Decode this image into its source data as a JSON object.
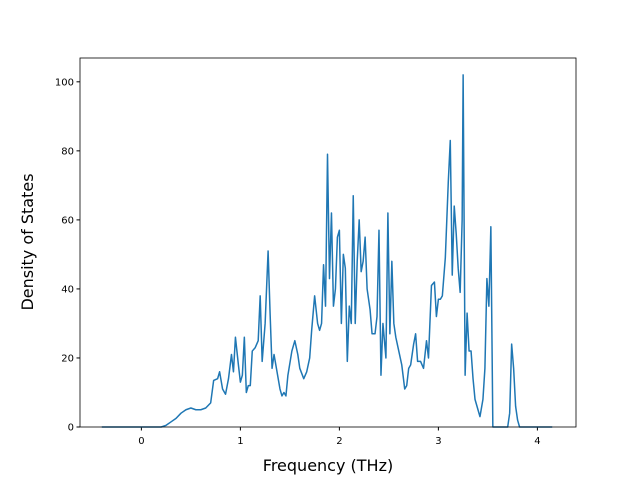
{
  "chart_data": {
    "type": "line",
    "x_label": "Frequency (THz)",
    "y_label": "Density of States",
    "x": [
      -0.4,
      0.2,
      0.25,
      0.3,
      0.35,
      0.4,
      0.45,
      0.5,
      0.55,
      0.6,
      0.65,
      0.7,
      0.73,
      0.77,
      0.79,
      0.82,
      0.85,
      0.88,
      0.91,
      0.93,
      0.95,
      0.98,
      1.0,
      1.02,
      1.04,
      1.06,
      1.08,
      1.1,
      1.12,
      1.15,
      1.18,
      1.2,
      1.22,
      1.25,
      1.28,
      1.3,
      1.32,
      1.34,
      1.37,
      1.4,
      1.42,
      1.44,
      1.46,
      1.48,
      1.52,
      1.55,
      1.58,
      1.6,
      1.64,
      1.67,
      1.7,
      1.72,
      1.75,
      1.78,
      1.8,
      1.82,
      1.84,
      1.86,
      1.88,
      1.9,
      1.92,
      1.94,
      1.96,
      1.98,
      2.0,
      2.02,
      2.04,
      2.06,
      2.08,
      2.1,
      2.12,
      2.14,
      2.16,
      2.18,
      2.2,
      2.22,
      2.24,
      2.26,
      2.28,
      2.31,
      2.33,
      2.36,
      2.38,
      2.4,
      2.42,
      2.44,
      2.47,
      2.49,
      2.51,
      2.53,
      2.55,
      2.57,
      2.6,
      2.63,
      2.66,
      2.68,
      2.7,
      2.72,
      2.75,
      2.77,
      2.79,
      2.82,
      2.85,
      2.88,
      2.9,
      2.93,
      2.96,
      2.98,
      3.0,
      3.02,
      3.04,
      3.07,
      3.1,
      3.12,
      3.14,
      3.16,
      3.18,
      3.2,
      3.22,
      3.24,
      3.25,
      3.27,
      3.29,
      3.31,
      3.33,
      3.35,
      3.37,
      3.4,
      3.42,
      3.45,
      3.47,
      3.49,
      3.51,
      3.53,
      3.55,
      3.7,
      3.72,
      3.74,
      3.76,
      3.78,
      3.8,
      3.82,
      4.15
    ],
    "series": [
      {
        "name": "DOS",
        "color": "#1f77b4",
        "values": [
          0,
          0,
          0.5,
          1.5,
          2.5,
          4,
          5,
          5.5,
          5,
          5,
          5.5,
          7,
          13.5,
          14,
          16,
          11,
          9.5,
          14,
          21,
          16,
          26,
          18,
          13,
          15,
          26,
          10,
          12,
          12,
          22,
          23,
          25,
          38,
          19,
          30,
          51,
          33,
          17,
          21,
          16,
          11,
          9,
          10,
          9,
          15,
          22,
          25,
          21,
          17,
          14,
          16,
          20,
          28,
          38,
          30,
          28,
          30,
          47,
          35,
          79,
          43,
          62,
          35,
          40,
          55,
          57,
          30,
          50,
          46,
          19,
          35,
          30,
          67,
          30,
          48,
          60,
          45,
          48,
          55,
          40,
          34,
          27,
          27,
          32,
          57,
          15,
          30,
          20,
          62,
          27,
          48,
          30,
          26,
          22,
          18,
          11,
          12,
          17,
          18,
          24,
          27,
          19,
          19,
          17,
          25,
          20,
          41,
          42,
          32,
          37,
          37,
          38,
          49,
          71,
          83,
          44,
          64,
          56,
          46,
          39,
          60,
          102,
          15,
          33,
          22,
          22,
          14,
          8,
          5,
          3,
          8,
          17,
          43,
          35,
          58,
          0,
          0,
          4,
          24,
          17,
          6,
          2,
          0,
          0
        ]
      }
    ],
    "xlim": [
      -0.62,
      4.39
    ],
    "ylim": [
      0,
      106.9
    ],
    "xticks": [
      0,
      1,
      2,
      3,
      4
    ],
    "yticks": [
      0,
      20,
      40,
      60,
      80,
      100
    ]
  }
}
